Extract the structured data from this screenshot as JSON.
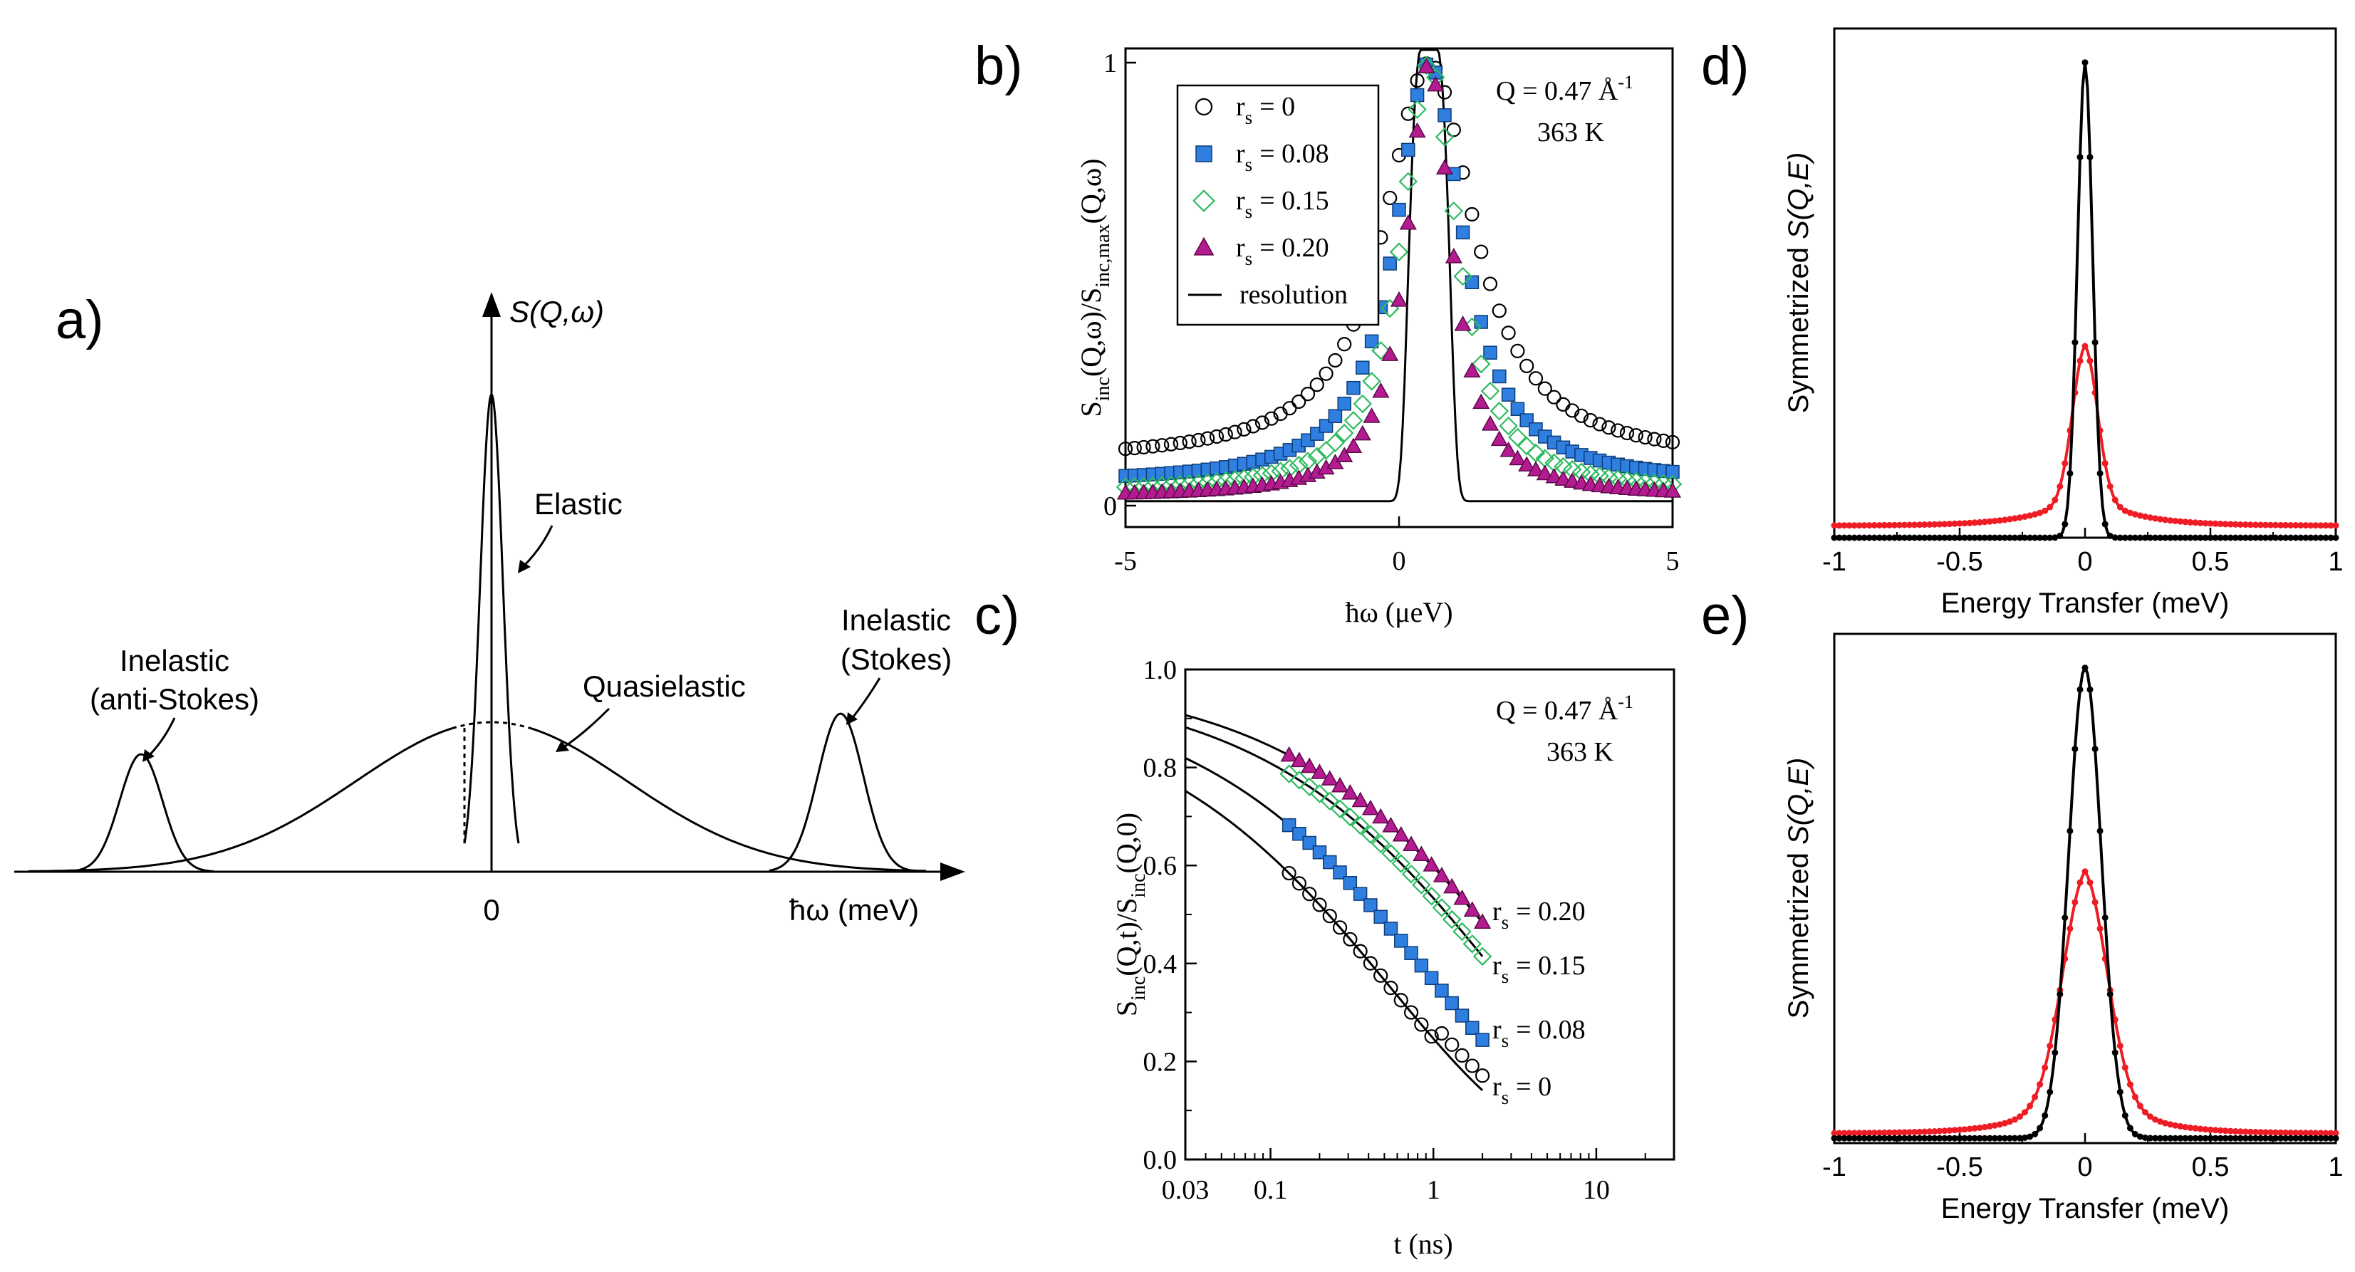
{
  "colors": {
    "black": "#000000",
    "blue": "#2f7fe0",
    "green": "#2dbb5f",
    "magenta": "#b51b91",
    "red": "#ee1c24"
  },
  "panel_labels": {
    "a": "a)",
    "b": "b)",
    "c": "c)",
    "d": "d)",
    "e": "e)"
  },
  "panel_a": {
    "type": "schematic",
    "y_axis_label": "S(Q,ω)",
    "x_axis_label": "ħω (meV)",
    "zero_tick": "0",
    "labels": {
      "elastic": "Elastic",
      "quasielastic": "Quasielastic",
      "inelastic_left_1": "Inelastic",
      "inelastic_left_2": "(anti-Stokes)",
      "inelastic_right_1": "Inelastic",
      "inelastic_right_2": "(Stokes)"
    }
  },
  "chart_data": [
    {
      "id": "b",
      "type": "scatter",
      "xlabel": "ħω (μeV)",
      "ylabel": "S_inc(Q,ω)/S_inc,max(Q,ω)",
      "ylabel_main1": "S",
      "ylabel_sub1": "inc",
      "ylabel_main2": "(Q,ω)/S",
      "ylabel_sub2": "inc,max",
      "ylabel_main3": "(Q,ω)",
      "xlim": [
        -5,
        5
      ],
      "ylim": [
        0,
        1
      ],
      "x_ticks": [
        {
          "v": -5,
          "label": "-5"
        },
        {
          "v": 0,
          "label": "0"
        },
        {
          "v": 5,
          "label": "5"
        }
      ],
      "y_ticks": [
        {
          "v": 0,
          "label": "0"
        },
        {
          "v": 1,
          "label": "1"
        }
      ],
      "annotation_q": "Q = 0.47 Å",
      "annotation_q_sup": "-1",
      "annotation_t": "363 K",
      "legend": [
        {
          "sym": "circle",
          "main": "r",
          "sub": "s",
          "text": "= 0"
        },
        {
          "sym": "square",
          "main": "r",
          "sub": "s",
          "text": "= 0.08"
        },
        {
          "sym": "diamond",
          "main": "r",
          "sub": "s",
          "text": "= 0.15"
        },
        {
          "sym": "triangle",
          "main": "r",
          "sub": "s",
          "text": "= 0.20"
        },
        {
          "sym": "line",
          "main": "",
          "sub": "",
          "text": "resolution"
        }
      ],
      "series": [
        {
          "name": "r_s = 0",
          "marker": "circle",
          "color": "#000000",
          "gamma": 1.0,
          "base": 0.1,
          "center": 0.55
        },
        {
          "name": "r_s = 0.08",
          "marker": "square",
          "color": "#2f7fe0",
          "gamma": 0.75,
          "base": 0.05,
          "center": 0.55
        },
        {
          "name": "r_s = 0.15",
          "marker": "diamond",
          "color": "#2dbb5f",
          "gamma": 0.62,
          "base": 0.03,
          "center": 0.55
        },
        {
          "name": "r_s = 0.20",
          "marker": "triangle",
          "color": "#b51b91",
          "gamma": 0.5,
          "base": 0.02,
          "center": 0.55
        }
      ],
      "resolution": {
        "center": 0.55,
        "sigma": 0.35,
        "base": 0.01
      }
    },
    {
      "id": "c",
      "type": "scatter",
      "xscale": "log",
      "xlabel": "t (ns)",
      "ylabel": "S_inc(Q,t)/S_inc(Q,0)",
      "ylabel_main1": "S",
      "ylabel_sub1": "inc",
      "ylabel_main2": "(Q,t)/S",
      "ylabel_sub2": "inc",
      "ylabel_main3": "(Q,0)",
      "xlim": [
        0.03,
        30
      ],
      "ylim": [
        0,
        1
      ],
      "x_ticks": [
        {
          "v": 0.03,
          "label": "0.03"
        },
        {
          "v": 0.1,
          "label": "0.1"
        },
        {
          "v": 1,
          "label": "1"
        },
        {
          "v": 10,
          "label": "10"
        }
      ],
      "y_ticks": [
        {
          "v": 0,
          "label": "0.0"
        },
        {
          "v": 0.2,
          "label": "0.2"
        },
        {
          "v": 0.4,
          "label": "0.4"
        },
        {
          "v": 0.6,
          "label": "0.6"
        },
        {
          "v": 0.8,
          "label": "0.8"
        },
        {
          "v": 1,
          "label": "1.0"
        }
      ],
      "annotation_q": "Q = 0.47 Å",
      "annotation_q_sup": "-1",
      "annotation_t": "363 K",
      "series_labels": [
        {
          "main": "r",
          "sub": "s",
          "text": "= 0.20"
        },
        {
          "main": "r",
          "sub": "s",
          "text": "= 0.15"
        },
        {
          "main": "r",
          "sub": "s",
          "text": "= 0.08"
        },
        {
          "main": "r",
          "sub": "s",
          "text": "= 0"
        }
      ],
      "series": [
        {
          "name": "r_s = 0",
          "marker": "circle",
          "color": "#000000",
          "fit": {
            "A": 0.95,
            "tau": 0.55,
            "beta": 0.5
          },
          "x_range": [
            0.13,
            2
          ]
        },
        {
          "name": "r_s = 0.08",
          "marker": "square",
          "color": "#2f7fe0",
          "fit": {
            "A": 0.97,
            "tau": 1.05,
            "beta": 0.5
          },
          "x_range": [
            0.13,
            2
          ]
        },
        {
          "name": "r_s = 0.15",
          "marker": "diamond",
          "color": "#2dbb5f",
          "fit": {
            "A": 0.98,
            "tau": 2.7,
            "beta": 0.5
          },
          "x_range": [
            0.13,
            2
          ]
        },
        {
          "name": "r_s = 0.20",
          "marker": "triangle",
          "color": "#b51b91",
          "fit": {
            "A": 0.99,
            "tau": 3.9,
            "beta": 0.5
          },
          "x_range": [
            0.13,
            2
          ]
        }
      ]
    },
    {
      "id": "d",
      "type": "line",
      "xlabel": "Energy Transfer (meV)",
      "ylabel": "Symmetrized S(Q,E)",
      "ylabel_plain": "Symmetrized ",
      "ylabel_italic": "S(Q,E)",
      "xlim": [
        -1,
        1
      ],
      "ylim": [
        0,
        1.05
      ],
      "x_ticks": [
        {
          "v": -1,
          "label": "-1"
        },
        {
          "v": -0.5,
          "label": "-0.5"
        },
        {
          "v": 0,
          "label": "0"
        },
        {
          "v": 0.5,
          "label": "0.5"
        },
        {
          "v": 1,
          "label": "1"
        }
      ],
      "series": [
        {
          "name": "black",
          "color": "#000000",
          "amp": 0.98,
          "width": 0.03,
          "base": 0.0,
          "tail": 0.0
        },
        {
          "name": "red",
          "color": "#ee1c24",
          "amp": 0.3,
          "width": 0.05,
          "base": 0.025,
          "tail": 0.07
        }
      ]
    },
    {
      "id": "e",
      "type": "line",
      "xlabel": "Energy Transfer (meV)",
      "ylabel": "Symmetrized S(Q,E)",
      "ylabel_plain": "Symmetrized ",
      "ylabel_italic": "S(Q,E)",
      "xlim": [
        -1,
        1
      ],
      "ylim": [
        0,
        1.05
      ],
      "x_ticks": [
        {
          "v": -1,
          "label": "-1"
        },
        {
          "v": -0.5,
          "label": "-0.5"
        },
        {
          "v": 0,
          "label": "0"
        },
        {
          "v": 0.5,
          "label": "0.5"
        },
        {
          "v": 1,
          "label": "1"
        }
      ],
      "series": [
        {
          "name": "black",
          "color": "#000000",
          "amp": 0.97,
          "width": 0.065,
          "base": 0.01,
          "tail": 0.0
        },
        {
          "name": "red",
          "color": "#ee1c24",
          "amp": 0.42,
          "width": 0.09,
          "base": 0.02,
          "tail": 0.12
        }
      ]
    }
  ]
}
